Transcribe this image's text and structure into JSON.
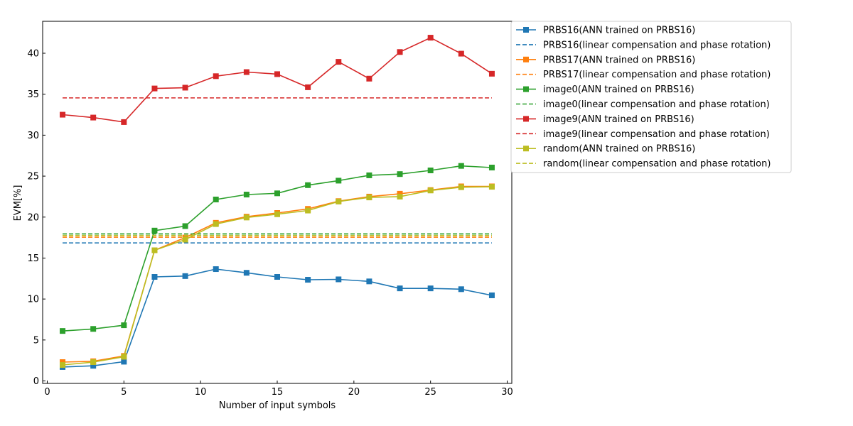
{
  "chart_data": {
    "type": "line",
    "title": "",
    "xlabel": "Number of input symbols",
    "ylabel": "EVM[%]",
    "xlim": [
      -0.3,
      30.3
    ],
    "ylim": [
      -0.3,
      43.9
    ],
    "xticks": [
      0,
      5,
      10,
      15,
      20,
      25,
      30
    ],
    "yticks": [
      0,
      5,
      10,
      15,
      20,
      25,
      30,
      35,
      40
    ],
    "x": [
      1,
      3,
      5,
      7,
      9,
      11,
      13,
      15,
      17,
      19,
      21,
      23,
      25,
      27,
      29
    ],
    "grid": false,
    "legend_position": "outside top-right",
    "series": [
      {
        "name": "PRBS16(ANN trained on PRBS16)",
        "style": "solid-marker",
        "color": "#1f77b4",
        "values": [
          1.7,
          1.85,
          2.35,
          12.7,
          12.8,
          13.65,
          13.2,
          12.7,
          12.35,
          12.4,
          12.15,
          11.3,
          11.3,
          11.2,
          10.45
        ]
      },
      {
        "name": "PRBS16(linear compensation and phase rotation)",
        "style": "dashed",
        "color": "#1f77b4",
        "constant": 16.85
      },
      {
        "name": "PRBS17(ANN trained on PRBS16)",
        "style": "solid-marker",
        "color": "#ff7f0e",
        "values": [
          2.3,
          2.4,
          3.05,
          15.95,
          17.5,
          19.3,
          20.05,
          20.5,
          21.0,
          21.95,
          22.5,
          22.85,
          23.3,
          23.75,
          23.75
        ]
      },
      {
        "name": "PRBS17(linear compensation and phase rotation)",
        "style": "dashed",
        "color": "#ff7f0e",
        "constant": 17.55
      },
      {
        "name": "image0(ANN trained on PRBS16)",
        "style": "solid-marker",
        "color": "#2ca02c",
        "values": [
          6.1,
          6.35,
          6.8,
          18.35,
          18.9,
          22.15,
          22.75,
          22.9,
          23.9,
          24.45,
          25.1,
          25.25,
          25.7,
          26.25,
          26.05
        ]
      },
      {
        "name": "image0(linear compensation and phase rotation)",
        "style": "dashed",
        "color": "#2ca02c",
        "constant": 17.95
      },
      {
        "name": "image9(ANN trained on PRBS16)",
        "style": "solid-marker",
        "color": "#d62728",
        "values": [
          32.5,
          32.15,
          31.6,
          35.7,
          35.8,
          37.2,
          37.7,
          37.45,
          35.85,
          38.95,
          36.9,
          40.15,
          41.9,
          39.95,
          37.5
        ]
      },
      {
        "name": "image9(linear compensation and phase rotation)",
        "style": "dashed",
        "color": "#d62728",
        "constant": 34.55
      },
      {
        "name": "random(ANN trained on PRBS16)",
        "style": "solid-marker",
        "color": "#bcbd22",
        "values": [
          1.95,
          2.3,
          2.95,
          15.95,
          17.25,
          19.15,
          19.95,
          20.35,
          20.8,
          21.9,
          22.4,
          22.5,
          23.25,
          23.65,
          23.7
        ]
      },
      {
        "name": "random(linear compensation and phase rotation)",
        "style": "dashed",
        "color": "#bcbd22",
        "constant": 17.75
      }
    ]
  }
}
